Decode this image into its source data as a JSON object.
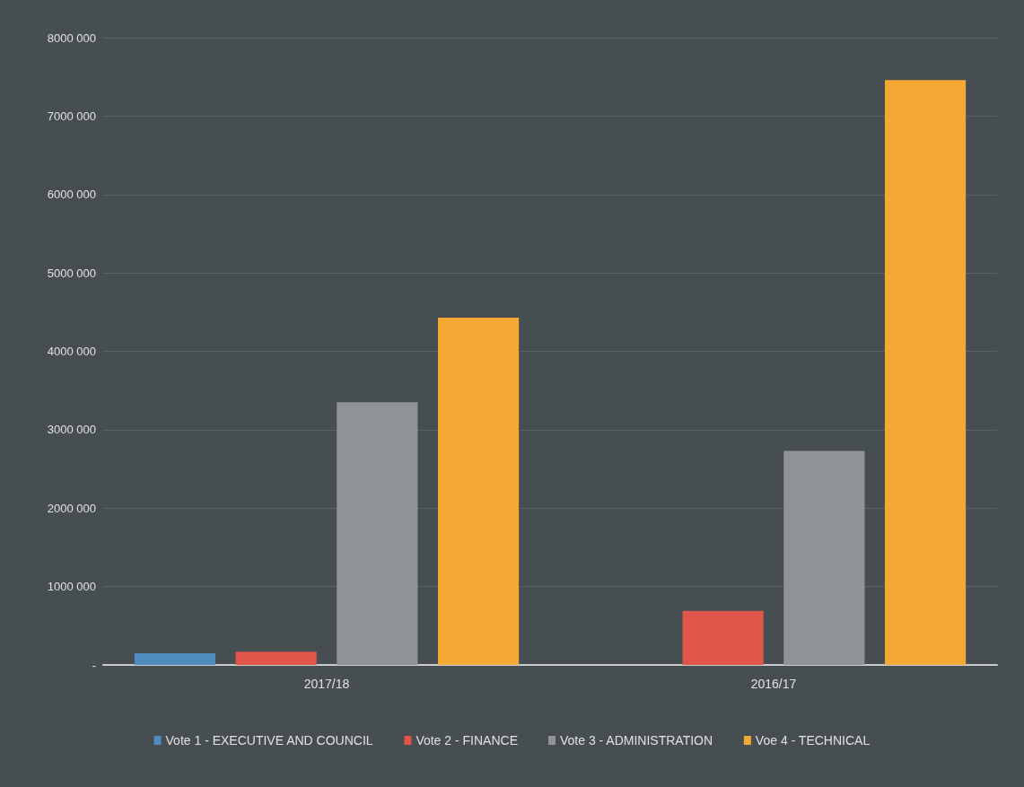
{
  "chart_data": {
    "type": "bar",
    "categories": [
      "2017/18",
      "2016/17"
    ],
    "series": [
      {
        "name": "Vote 1 - EXECUTIVE AND COUNCIL",
        "color": "#4f8cc0",
        "values": [
          150000,
          0
        ]
      },
      {
        "name": "Vote 2 - FINANCE",
        "color": "#e0564a",
        "values": [
          170000,
          690000
        ]
      },
      {
        "name": "Vote 3 - ADMINISTRATION",
        "color": "#909497",
        "values": [
          3350000,
          2730000
        ]
      },
      {
        "name": "Voe 4 - TECHNICAL",
        "color": "#f4a935",
        "values": [
          4430000,
          7460000
        ]
      }
    ],
    "ylim": [
      0,
      8000000
    ],
    "yticks": [
      {
        "value": 0,
        "label": "-"
      },
      {
        "value": 1000000,
        "label": "1000 000"
      },
      {
        "value": 2000000,
        "label": "2000 000"
      },
      {
        "value": 3000000,
        "label": "3000 000"
      },
      {
        "value": 4000000,
        "label": "4000 000"
      },
      {
        "value": 5000000,
        "label": "5000 000"
      },
      {
        "value": 6000000,
        "label": "6000 000"
      },
      {
        "value": 7000000,
        "label": "7000 000"
      },
      {
        "value": 8000000,
        "label": "8000 000"
      }
    ],
    "grid": "y",
    "legend": "bottom"
  }
}
